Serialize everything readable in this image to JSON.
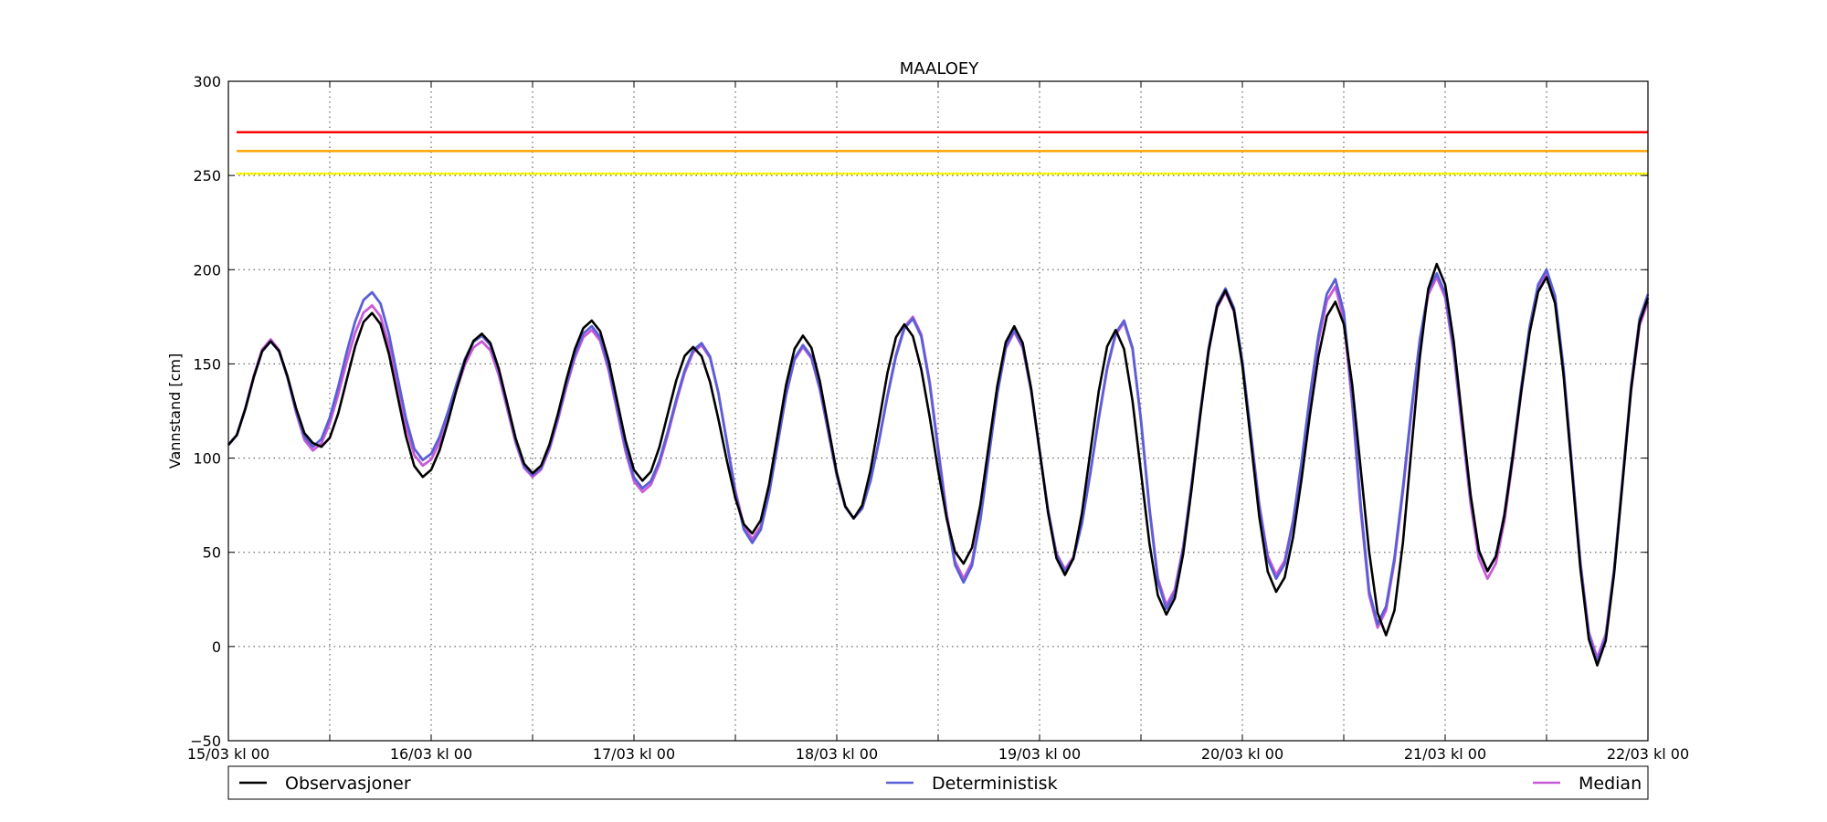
{
  "chart_data": {
    "type": "line",
    "title": "MAALOEY",
    "xlabel": "",
    "ylabel": "Vannstand [cm]",
    "xlim": [
      0,
      168
    ],
    "ylim": [
      -50,
      300
    ],
    "grid": true,
    "x_ticks": [
      {
        "x": 0,
        "label": "15/03 kl 00"
      },
      {
        "x": 12,
        "label": ""
      },
      {
        "x": 24,
        "label": "16/03 kl 00"
      },
      {
        "x": 36,
        "label": ""
      },
      {
        "x": 48,
        "label": "17/03 kl 00"
      },
      {
        "x": 60,
        "label": ""
      },
      {
        "x": 72,
        "label": "18/03 kl 00"
      },
      {
        "x": 84,
        "label": ""
      },
      {
        "x": 96,
        "label": "19/03 kl 00"
      },
      {
        "x": 108,
        "label": ""
      },
      {
        "x": 120,
        "label": "20/03 kl 00"
      },
      {
        "x": 132,
        "label": ""
      },
      {
        "x": 144,
        "label": "21/03 kl 00"
      },
      {
        "x": 156,
        "label": ""
      },
      {
        "x": 168,
        "label": "22/03 kl 00"
      }
    ],
    "y_ticks": [
      -50,
      0,
      50,
      100,
      150,
      200,
      250,
      300
    ],
    "thresholds": [
      {
        "value": 273,
        "color": "#ff0000",
        "style": "solid"
      },
      {
        "value": 263,
        "color": "#ffa500",
        "style": "solid"
      },
      {
        "value": 251,
        "color": "#ffff00",
        "style": "solid"
      }
    ],
    "legend": {
      "placement": "bottom",
      "columns": 3
    },
    "series": [
      {
        "name": "Observasjoner",
        "color": "#000000",
        "extrema": [
          [
            0,
            107
          ],
          [
            5,
            162
          ],
          [
            10,
            108
          ],
          [
            11,
            106
          ],
          [
            17,
            177
          ],
          [
            23,
            90
          ],
          [
            30,
            166
          ],
          [
            36,
            92
          ],
          [
            43,
            173
          ],
          [
            49,
            88
          ],
          [
            55,
            159
          ],
          [
            62,
            60
          ],
          [
            68,
            165
          ],
          [
            74,
            68
          ],
          [
            80,
            171
          ],
          [
            87,
            44
          ],
          [
            93,
            170
          ],
          [
            99,
            38
          ],
          [
            105,
            168
          ],
          [
            111,
            17
          ],
          [
            118,
            189
          ],
          [
            124,
            29
          ],
          [
            131,
            183
          ],
          [
            137,
            6
          ],
          [
            143,
            203
          ],
          [
            149,
            40
          ],
          [
            156,
            196
          ],
          [
            162,
            -10
          ],
          [
            168,
            185
          ]
        ]
      },
      {
        "name": "Deterministisk",
        "color": "#5a5fd6",
        "extrema": [
          [
            0,
            107
          ],
          [
            5,
            162
          ],
          [
            10,
            106
          ],
          [
            17,
            188
          ],
          [
            23,
            99
          ],
          [
            30,
            165
          ],
          [
            36,
            91
          ],
          [
            43,
            170
          ],
          [
            49,
            84
          ],
          [
            56,
            161
          ],
          [
            62,
            55
          ],
          [
            68,
            160
          ],
          [
            74,
            68
          ],
          [
            81,
            174
          ],
          [
            87,
            34
          ],
          [
            93,
            168
          ],
          [
            99,
            40
          ],
          [
            106,
            173
          ],
          [
            111,
            20
          ],
          [
            118,
            190
          ],
          [
            124,
            36
          ],
          [
            131,
            195
          ],
          [
            136,
            12
          ],
          [
            143,
            198
          ],
          [
            149,
            40
          ],
          [
            156,
            200
          ],
          [
            162,
            -8
          ],
          [
            168,
            187
          ]
        ]
      },
      {
        "name": "Median",
        "color": "#c95ad8",
        "extrema": [
          [
            0,
            107
          ],
          [
            5,
            163
          ],
          [
            10,
            104
          ],
          [
            17,
            181
          ],
          [
            23,
            96
          ],
          [
            30,
            162
          ],
          [
            36,
            90
          ],
          [
            43,
            168
          ],
          [
            49,
            82
          ],
          [
            56,
            160
          ],
          [
            62,
            57
          ],
          [
            68,
            159
          ],
          [
            74,
            68
          ],
          [
            81,
            175
          ],
          [
            87,
            36
          ],
          [
            93,
            167
          ],
          [
            99,
            41
          ],
          [
            106,
            172
          ],
          [
            111,
            22
          ],
          [
            118,
            188
          ],
          [
            124,
            38
          ],
          [
            131,
            191
          ],
          [
            136,
            10
          ],
          [
            143,
            196
          ],
          [
            149,
            36
          ],
          [
            156,
            198
          ],
          [
            162,
            -6
          ],
          [
            168,
            183
          ]
        ]
      }
    ]
  }
}
